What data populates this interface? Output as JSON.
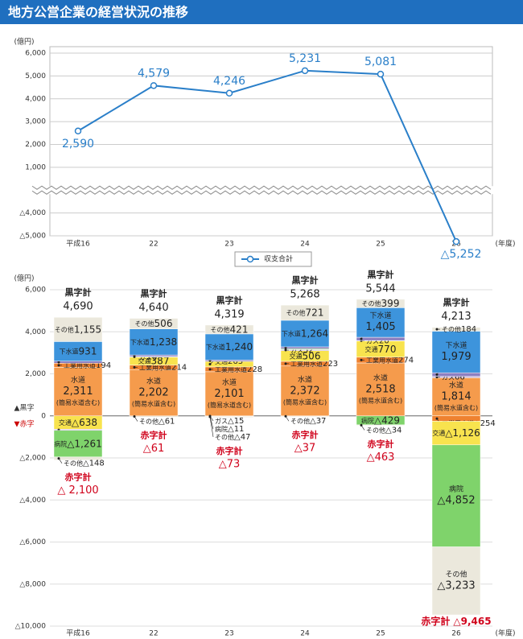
{
  "header": {
    "title": "地方公営企業の経営状況の推移"
  },
  "chart_data": [
    {
      "type": "line",
      "y_unit": "(億円)",
      "x_unit": "(年度)",
      "categories": [
        "平成16",
        "22",
        "23",
        "24",
        "25",
        "26"
      ],
      "series": [
        {
          "name": "収支合計",
          "color": "#2a7fc9",
          "values": [
            2590,
            4579,
            4246,
            5231,
            5081,
            -5252
          ],
          "value_labels": [
            "2,590",
            "4,579",
            "4,246",
            "5,231",
            "5,081",
            "△5,252"
          ]
        }
      ],
      "ylim": [
        -5000,
        6000
      ],
      "y_break": [
        -3000,
        0
      ],
      "yticks": [
        {
          "value": 6000,
          "label": "6,000"
        },
        {
          "value": 5000,
          "label": "5,000"
        },
        {
          "value": 4000,
          "label": "4,000"
        },
        {
          "value": 3000,
          "label": "3,000"
        },
        {
          "value": 2000,
          "label": "2,000"
        },
        {
          "value": 1000,
          "label": "1,000"
        },
        0,
        {
          "value": -4000,
          "label": "△4,000"
        },
        {
          "value": -5000,
          "label": "△5,000"
        }
      ],
      "grid": true,
      "legend": "bottom"
    },
    {
      "type": "stacked_bar",
      "y_unit": "(億円)",
      "x_unit": "(年度)",
      "surplus_marker": "▲黒字",
      "deficit_marker": "▼赤字",
      "categories": [
        "平成16",
        "22",
        "23",
        "24",
        "25",
        "26"
      ],
      "series": [
        {
          "name": "水道",
          "note": "(簡易水道含む)",
          "color": "#f59b4c",
          "values": [
            2311,
            2202,
            2101,
            2372,
            2518,
            1814
          ],
          "value_labels": [
            "2,311",
            "2,202",
            "2,101",
            "2,372",
            "2,518",
            "1,814"
          ]
        },
        {
          "name": "工業用水道",
          "color": "#ef8230",
          "values": [
            194,
            214,
            228,
            223,
            274,
            -254
          ],
          "value_labels": [
            "194",
            "214",
            "228",
            "223",
            "274",
            "△254"
          ]
        },
        {
          "name": "交通",
          "color": "#f8e34e",
          "values": [
            -638,
            387,
            263,
            506,
            770,
            -1126
          ],
          "value_labels": [
            "△638",
            "387",
            "263",
            "506",
            "770",
            "△1,126"
          ]
        },
        {
          "name": "ガス",
          "color": "#c5b5e0",
          "values": [
            -53,
            8,
            -15,
            52,
            20,
            66
          ],
          "value_labels": [
            "△53",
            "8",
            "△15",
            "52",
            "20",
            "66"
          ]
        },
        {
          "name": "病院",
          "color": "#7fd36b",
          "values": [
            -1261,
            9,
            -11,
            42,
            -429,
            -4852
          ],
          "value_labels": [
            "△1,261",
            "9",
            "△11",
            "42",
            "△429",
            "△4,852"
          ]
        },
        {
          "name": "電気",
          "color": "#8d7fc0",
          "values": [
            99,
            76,
            66,
            88,
            158,
            170
          ],
          "value_labels": [
            "99",
            "76",
            "66",
            "88",
            "158",
            "170"
          ]
        },
        {
          "name": "下水道",
          "color": "#3d94dc",
          "values": [
            931,
            1238,
            1240,
            1264,
            1405,
            1979
          ],
          "value_labels": [
            "931",
            "1,238",
            "1,240",
            "1,264",
            "1,405",
            "1,979"
          ]
        },
        {
          "name": "その他",
          "color": "#ebe8dc",
          "values": [
            1155,
            506,
            421,
            721,
            399,
            184
          ],
          "value_labels": [
            "1,155",
            "506",
            "421",
            "721",
            "399",
            "184"
          ]
        },
        {
          "name": "その他",
          "color": "#ebe8dc",
          "values": [
            -148,
            -61,
            -47,
            -37,
            -34,
            -3233
          ],
          "value_labels": [
            "△148",
            "△61",
            "△47",
            "△37",
            "△34",
            "△3,233"
          ]
        }
      ],
      "surplus": {
        "label": "黒字計",
        "values": [
          4690,
          4640,
          4319,
          5268,
          5544,
          4213
        ],
        "value_labels": [
          "4,690",
          "4,640",
          "4,319",
          "5,268",
          "5,544",
          "4,213"
        ]
      },
      "deficit": {
        "label": "赤字計",
        "values": [
          -2100,
          -61,
          -73,
          -37,
          -463,
          -9465
        ],
        "value_labels": [
          "△ 2,100",
          "△61",
          "△73",
          "△37",
          "△463",
          "△9,465"
        ]
      },
      "ylim": [
        -10000,
        6000
      ],
      "yticks": [
        {
          "value": 6000,
          "label": "6,000"
        },
        {
          "value": 4000,
          "label": "4,000"
        },
        {
          "value": 2000,
          "label": "2,000"
        },
        0,
        {
          "value": -2000,
          "label": "△2,000"
        },
        {
          "value": -4000,
          "label": "△4,000"
        },
        {
          "value": -6000,
          "label": "△6,000"
        },
        {
          "value": -8000,
          "label": "△8,000"
        },
        {
          "value": -10000,
          "label": "△10,000"
        }
      ],
      "grid": true
    }
  ]
}
